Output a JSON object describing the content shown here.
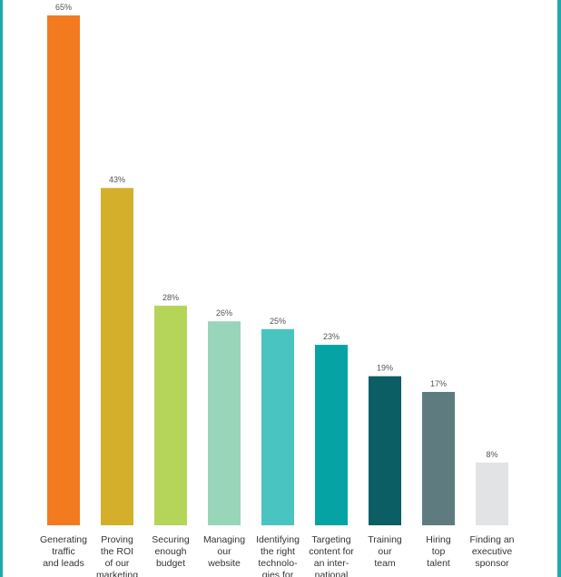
{
  "chart_data": {
    "type": "bar",
    "title": "",
    "xlabel": "",
    "ylabel": "",
    "ylim": [
      0,
      65
    ],
    "grid": false,
    "legend": "none",
    "value_suffix": "%",
    "categories": [
      [
        "Generating",
        "traffic",
        "and leads"
      ],
      [
        "Proving",
        "the ROI",
        "of our",
        "marketing"
      ],
      [
        "Securing",
        "enough",
        "budget"
      ],
      [
        "Managing",
        "our",
        "website"
      ],
      [
        "Identifying",
        "the right",
        "technolo-",
        "gies for"
      ],
      [
        "Targeting",
        "content for",
        "an inter-",
        "national"
      ],
      [
        "Training",
        "our",
        "team"
      ],
      [
        "Hiring",
        "top",
        "talent"
      ],
      [
        "Finding an",
        "executive",
        "sponsor"
      ]
    ],
    "values": [
      65,
      43,
      28,
      26,
      25,
      23,
      19,
      17,
      8
    ],
    "value_labels": [
      "65%",
      "43%",
      "28%",
      "26%",
      "25%",
      "23%",
      "19%",
      "17%",
      "8%"
    ],
    "colors": [
      "#f47a20",
      "#d4af2c",
      "#b5d55a",
      "#98d5b9",
      "#4ac4c1",
      "#05a3a4",
      "#0a5e64",
      "#5e7c80",
      "#e2e3e4"
    ]
  }
}
